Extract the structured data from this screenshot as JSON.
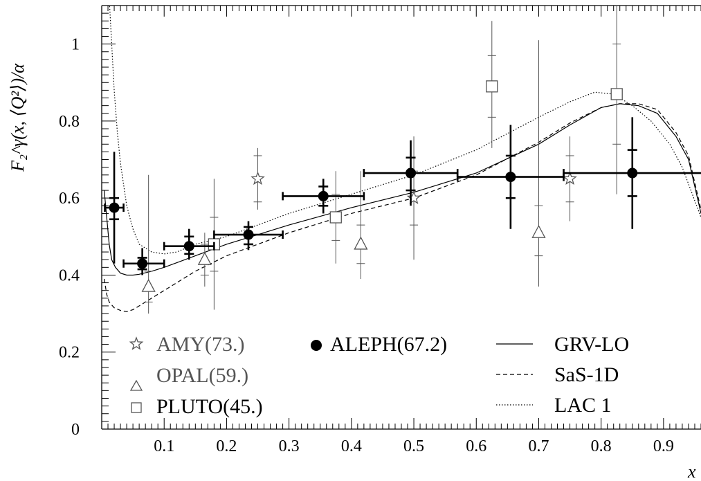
{
  "chart_data": {
    "type": "scatter",
    "title": "",
    "xlabel": "x",
    "ylabel": "F₂^γ(x, ⟨Q²⟩)/α",
    "xlim": [
      0.0,
      0.96
    ],
    "ylim": [
      0.0,
      1.1
    ],
    "x_ticks": [
      "0.1",
      "0.2",
      "0.3",
      "0.4",
      "0.5",
      "0.6",
      "0.7",
      "0.8",
      "0.9"
    ],
    "x_tick_values": [
      0.1,
      0.2,
      0.3,
      0.4,
      0.5,
      0.6,
      0.7,
      0.8,
      0.9
    ],
    "y_ticks": [
      "0",
      "0.2",
      "0.4",
      "0.6",
      "0.8",
      "1"
    ],
    "y_tick_values": [
      0,
      0.2,
      0.4,
      0.6,
      0.8,
      1.0
    ],
    "grid": false,
    "legend_placement": "bottom",
    "series": [
      {
        "name": "AMY(73.)",
        "marker": "star",
        "color": "#555555",
        "points": [
          {
            "x": 0.25,
            "y": 0.65,
            "ylo": 0.57,
            "yhi": 0.73,
            "ylo_stat": 0.59,
            "yhi_stat": 0.71
          },
          {
            "x": 0.5,
            "y": 0.6,
            "ylo": 0.44,
            "yhi": 0.76,
            "ylo_stat": 0.53,
            "yhi_stat": 0.67
          },
          {
            "x": 0.75,
            "y": 0.65,
            "ylo": 0.54,
            "yhi": 0.76,
            "ylo_stat": 0.59,
            "yhi_stat": 0.71
          }
        ]
      },
      {
        "name": "OPAL(59.)",
        "marker": "triangle",
        "color": "#555555",
        "points": [
          {
            "x": 0.075,
            "y": 0.37,
            "ylo": 0.3,
            "yhi": 0.66,
            "ylo_stat": 0.33,
            "yhi_stat": 0.41
          },
          {
            "x": 0.165,
            "y": 0.44,
            "ylo": 0.37,
            "yhi": 0.51,
            "ylo_stat": 0.4,
            "yhi_stat": 0.48
          },
          {
            "x": 0.415,
            "y": 0.48,
            "ylo": 0.39,
            "yhi": 0.67,
            "ylo_stat": 0.43,
            "yhi_stat": 0.53
          },
          {
            "x": 0.7,
            "y": 0.51,
            "ylo": 0.37,
            "yhi": 1.01,
            "ylo_stat": 0.45,
            "yhi_stat": 0.58
          }
        ]
      },
      {
        "name": "PLUTO(45.)",
        "marker": "square",
        "color": "#555555",
        "points": [
          {
            "x": 0.18,
            "y": 0.48,
            "ylo": 0.31,
            "yhi": 0.65,
            "ylo_stat": 0.41,
            "yhi_stat": 0.55
          },
          {
            "x": 0.375,
            "y": 0.55,
            "ylo": 0.43,
            "yhi": 0.67,
            "ylo_stat": 0.49,
            "yhi_stat": 0.61
          },
          {
            "x": 0.625,
            "y": 0.89,
            "ylo": 0.73,
            "yhi": 1.06,
            "ylo_stat": 0.81,
            "yhi_stat": 0.97
          },
          {
            "x": 0.825,
            "y": 0.87,
            "ylo": 0.61,
            "yhi": 1.13,
            "ylo_stat": 0.74,
            "yhi_stat": 1.0
          }
        ]
      },
      {
        "name": "ALEPH(67.2)",
        "marker": "circle",
        "color": "#000000",
        "points": [
          {
            "x": 0.02,
            "y": 0.575,
            "xlo": 0.005,
            "xhi": 0.035,
            "ylo": 0.43,
            "yhi": 0.72,
            "ylo_stat": 0.545,
            "yhi_stat": 0.6
          },
          {
            "x": 0.065,
            "y": 0.43,
            "xlo": 0.035,
            "xhi": 0.1,
            "ylo": 0.4,
            "yhi": 0.47,
            "ylo_stat": 0.415,
            "yhi_stat": 0.445
          },
          {
            "x": 0.14,
            "y": 0.475,
            "xlo": 0.1,
            "xhi": 0.18,
            "ylo": 0.44,
            "yhi": 0.52,
            "ylo_stat": 0.455,
            "yhi_stat": 0.5
          },
          {
            "x": 0.235,
            "y": 0.505,
            "xlo": 0.18,
            "xhi": 0.29,
            "ylo": 0.465,
            "yhi": 0.54,
            "ylo_stat": 0.48,
            "yhi_stat": 0.525
          },
          {
            "x": 0.355,
            "y": 0.605,
            "xlo": 0.29,
            "xhi": 0.42,
            "ylo": 0.56,
            "yhi": 0.65,
            "ylo_stat": 0.58,
            "yhi_stat": 0.63
          },
          {
            "x": 0.495,
            "y": 0.665,
            "xlo": 0.42,
            "xhi": 0.57,
            "ylo": 0.58,
            "yhi": 0.75,
            "ylo_stat": 0.62,
            "yhi_stat": 0.705
          },
          {
            "x": 0.655,
            "y": 0.655,
            "xlo": 0.57,
            "xhi": 0.74,
            "ylo": 0.52,
            "yhi": 0.79,
            "ylo_stat": 0.6,
            "yhi_stat": 0.71
          },
          {
            "x": 0.85,
            "y": 0.665,
            "xlo": 0.74,
            "xhi": 0.96,
            "ylo": 0.52,
            "yhi": 0.81,
            "ylo_stat": 0.605,
            "yhi_stat": 0.725
          }
        ]
      }
    ],
    "curves": [
      {
        "name": "GRV-LO",
        "dash": "solid",
        "x": [
          0.004,
          0.008,
          0.012,
          0.016,
          0.022,
          0.03,
          0.04,
          0.05,
          0.06,
          0.08,
          0.1,
          0.15,
          0.2,
          0.3,
          0.4,
          0.5,
          0.6,
          0.7,
          0.75,
          0.8,
          0.83,
          0.86,
          0.89,
          0.92,
          0.94,
          0.96
        ],
        "y": [
          0.62,
          0.55,
          0.48,
          0.44,
          0.42,
          0.405,
          0.4,
          0.4,
          0.402,
          0.41,
          0.42,
          0.45,
          0.48,
          0.53,
          0.575,
          0.615,
          0.665,
          0.74,
          0.79,
          0.835,
          0.845,
          0.84,
          0.82,
          0.76,
          0.7,
          0.56
        ]
      },
      {
        "name": "SaS-1D",
        "dash": "dashed",
        "x": [
          0.004,
          0.008,
          0.012,
          0.02,
          0.03,
          0.04,
          0.05,
          0.06,
          0.08,
          0.1,
          0.15,
          0.2,
          0.3,
          0.4,
          0.5,
          0.6,
          0.7,
          0.75,
          0.8,
          0.83,
          0.86,
          0.89,
          0.92,
          0.94,
          0.96
        ],
        "y": [
          0.39,
          0.35,
          0.33,
          0.315,
          0.308,
          0.305,
          0.31,
          0.32,
          0.34,
          0.36,
          0.41,
          0.45,
          0.51,
          0.56,
          0.6,
          0.66,
          0.745,
          0.795,
          0.835,
          0.845,
          0.845,
          0.83,
          0.77,
          0.71,
          0.57
        ]
      },
      {
        "name": "LAC 1",
        "dash": "dotted",
        "x": [
          0.012,
          0.016,
          0.02,
          0.025,
          0.03,
          0.04,
          0.05,
          0.06,
          0.08,
          0.1,
          0.12,
          0.15,
          0.2,
          0.3,
          0.4,
          0.5,
          0.6,
          0.7,
          0.75,
          0.79,
          0.82,
          0.85,
          0.88,
          0.91,
          0.93,
          0.96
        ],
        "y": [
          1.12,
          1.0,
          0.88,
          0.77,
          0.69,
          0.58,
          0.52,
          0.48,
          0.46,
          0.455,
          0.46,
          0.48,
          0.5,
          0.56,
          0.61,
          0.66,
          0.725,
          0.81,
          0.85,
          0.875,
          0.87,
          0.84,
          0.8,
          0.74,
          0.68,
          0.55
        ]
      }
    ]
  },
  "legend": {
    "amy": "AMY(73.)",
    "opal": "OPAL(59.)",
    "pluto": "PLUTO(45.)",
    "aleph": "ALEPH(67.2)",
    "grv": "GRV-LO",
    "sas": "SaS-1D",
    "lac": "LAC 1"
  }
}
